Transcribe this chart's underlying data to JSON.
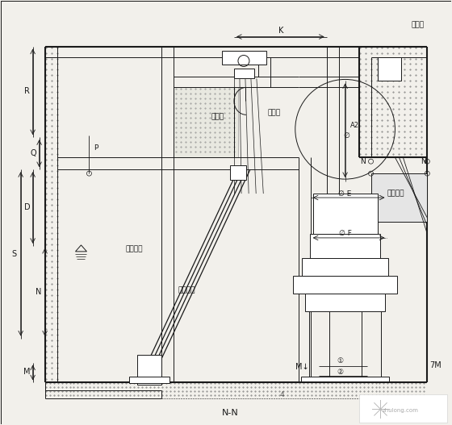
{
  "bg_color": "#f2f0eb",
  "lc": "#1a1a1a",
  "lw": 0.7,
  "lw2": 1.5,
  "labels": {
    "chuanqiangguan": "穿墙管",
    "laowuguo": "老污槽",
    "qifengji": "启闭机",
    "zuidi": "最低水位",
    "juxing": "矩形闸门",
    "fuzhi": "浮笩拍门",
    "K": "K",
    "R": "R",
    "Q": "Q",
    "P": "P",
    "D": "D",
    "S": "S",
    "N": "N",
    "M": "M",
    "E": "E",
    "F": "F",
    "A2": "A2",
    "NN": "N-N",
    "Mf": "M↓",
    "phi": "Ø"
  }
}
